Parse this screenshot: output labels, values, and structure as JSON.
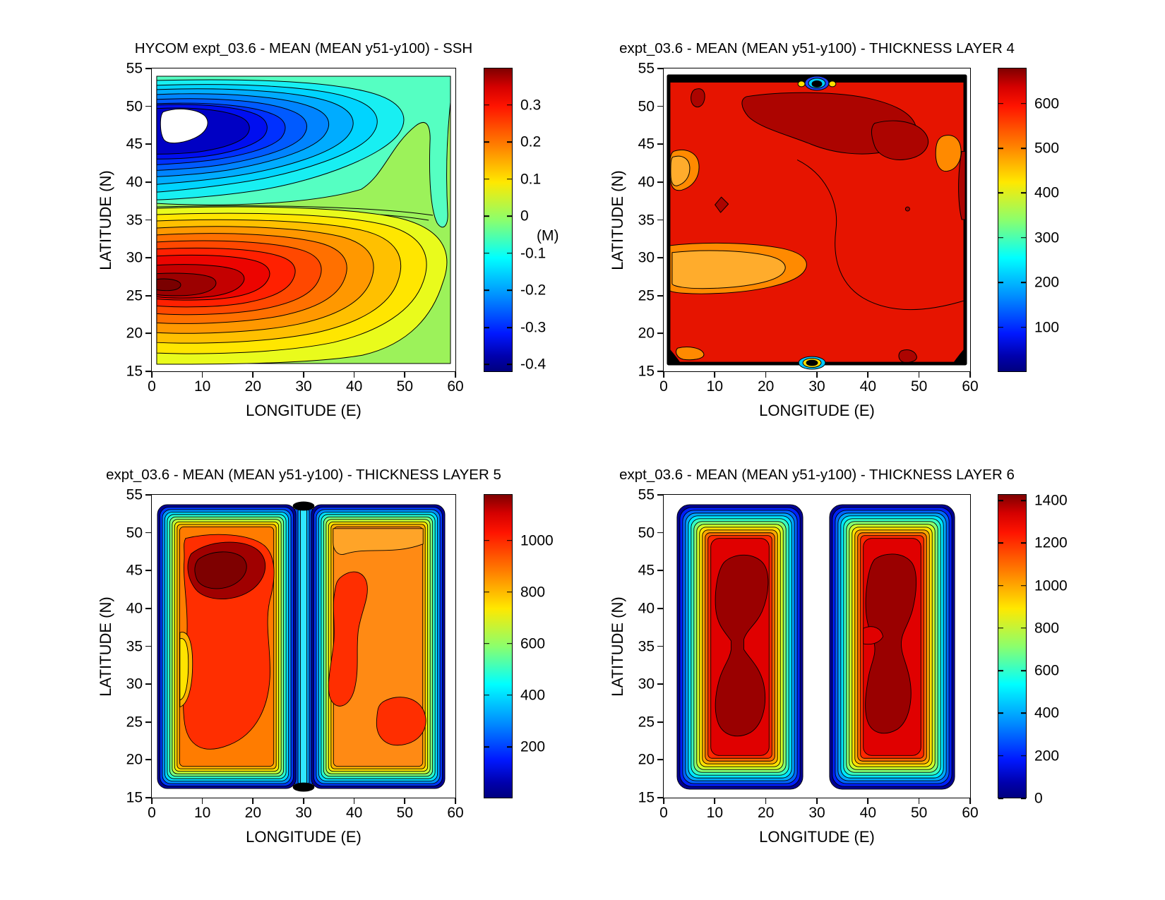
{
  "figure": {
    "background": "#ffffff",
    "colormap": "jet",
    "layout": "2x2 filled contour maps with vertical colorbars"
  },
  "chart_data": [
    {
      "type": "filled_contour",
      "title": "HYCOM expt_03.6 - MEAN (MEAN y51-y100) - SSH",
      "xlabel": "LONGITUDE (E)",
      "ylabel": "LATITUDE (N)",
      "xlim": [
        0,
        60
      ],
      "ylim": [
        15,
        55
      ],
      "xticks": [
        0,
        10,
        20,
        30,
        40,
        50,
        60
      ],
      "yticks": [
        15,
        20,
        25,
        30,
        35,
        40,
        45,
        50,
        55
      ],
      "colormap": "jet",
      "colorbar": {
        "min": -0.42,
        "max": 0.4,
        "unit": "(M)",
        "ticks": [
          0.3,
          0.2,
          0.1,
          0,
          -0.1,
          -0.2,
          -0.3,
          -0.4
        ],
        "labels": [
          "0.3",
          "0.2",
          "0.1",
          "0",
          "-0.1",
          "-0.2",
          "-0.3",
          "-0.4"
        ]
      },
      "features": [
        {
          "name": "subpolar-low",
          "value_range": [
            -0.45,
            -0.1
          ],
          "center": {
            "lon": 14,
            "lat": 46
          },
          "note": "blue depression in northern half; white saturated core (below -0.42) near lon 2-13, lat 44-50"
        },
        {
          "name": "subtropical-high",
          "value_range": [
            0.1,
            0.38
          ],
          "center": {
            "lon": 10,
            "lat": 26
          },
          "note": "red high hugging western boundary, dark-red core near lon 2-6, lat 24-28"
        },
        {
          "name": "zero-band",
          "value": 0,
          "note": "green near-zero values along eastern boundary and tight gradient band near lat 37-40"
        }
      ]
    },
    {
      "type": "filled_contour",
      "title": "expt_03.6 - MEAN (MEAN y51-y100) - THICKNESS LAYER 4",
      "xlabel": "LONGITUDE (E)",
      "ylabel": "LATITUDE (N)",
      "xlim": [
        0,
        60
      ],
      "ylim": [
        15,
        55
      ],
      "xticks": [
        0,
        10,
        20,
        30,
        40,
        50,
        60
      ],
      "yticks": [
        15,
        20,
        25,
        30,
        35,
        40,
        45,
        50,
        55
      ],
      "colormap": "jet",
      "colorbar": {
        "min": 0,
        "max": 680,
        "unit": "",
        "ticks": [
          600,
          500,
          400,
          300,
          200,
          100
        ],
        "labels": [
          "600",
          "500",
          "400",
          "300",
          "200",
          "100"
        ]
      },
      "features": [
        {
          "name": "interior",
          "value_range": [
            550,
            620
          ],
          "note": "basin interior mostly red ~600"
        },
        {
          "name": "thick-patch",
          "value_range": [
            620,
            680
          ],
          "center": {
            "lon": 30,
            "lat": 47
          },
          "note": "dark red maxima across northern interior"
        },
        {
          "name": "thin-patch",
          "value_range": [
            430,
            520
          ],
          "center": {
            "lon": 10,
            "lat": 27
          },
          "note": "orange minima near western boundary lat 23-31 and lat 36-43"
        },
        {
          "name": "boundary-collapse",
          "value_range": [
            0,
            100
          ],
          "note": "layer collapses to near zero at walls: black crowded contours along all edges, dips at lon 30 top and bottom"
        }
      ]
    },
    {
      "type": "filled_contour",
      "title": "expt_03.6 - MEAN (MEAN y51-y100) - THICKNESS LAYER 5",
      "xlabel": "LONGITUDE (E)",
      "ylabel": "LATITUDE (N)",
      "xlim": [
        0,
        60
      ],
      "ylim": [
        15,
        55
      ],
      "xticks": [
        0,
        10,
        20,
        30,
        40,
        50,
        60
      ],
      "yticks": [
        15,
        20,
        25,
        30,
        35,
        40,
        45,
        50,
        55
      ],
      "colormap": "jet",
      "colorbar": {
        "min": 0,
        "max": 1180,
        "unit": "",
        "ticks": [
          1000,
          800,
          600,
          400,
          200
        ],
        "labels": [
          "1000",
          "800",
          "600",
          "400",
          "200"
        ]
      },
      "features": [
        {
          "name": "two-basins",
          "note": "two rounded sub-basins split by a ridge channel at lon ~30 where thickness drops to ~300-400 (cyan/blue stripe)"
        },
        {
          "name": "west-basin-max",
          "value_range": [
            1050,
            1180
          ],
          "center": {
            "lon": 13,
            "lat": 46
          },
          "note": "dark red maximum in northwest of west basin"
        },
        {
          "name": "west-basin-edge-min",
          "value_range": [
            700,
            850
          ],
          "center": {
            "lon": 2,
            "lat": 34
          },
          "note": "yellow strip on west wall"
        },
        {
          "name": "east-basin",
          "value_range": [
            850,
            1050
          ],
          "note": "mostly orange with red blobs near lon 37-43 and lon 46-55, lat 20-29"
        },
        {
          "name": "rim",
          "value_range": [
            0,
            700
          ],
          "note": "tight rainbow rings collapsing to blue/black at all basin walls"
        }
      ]
    },
    {
      "type": "filled_contour",
      "title": "expt_03.6 - MEAN (MEAN y51-y100) - THICKNESS LAYER 6",
      "xlabel": "LONGITUDE (E)",
      "ylabel": "LATITUDE (N)",
      "xlim": [
        0,
        60
      ],
      "ylim": [
        15,
        55
      ],
      "xticks": [
        0,
        10,
        20,
        30,
        40,
        50,
        60
      ],
      "yticks": [
        15,
        20,
        25,
        30,
        35,
        40,
        45,
        50,
        55
      ],
      "colormap": "jet",
      "colorbar": {
        "min": 0,
        "max": 1430,
        "unit": "",
        "ticks": [
          1400,
          1200,
          1000,
          800,
          600,
          400,
          200,
          0
        ],
        "labels": [
          "1400",
          "1200",
          "1000",
          "800",
          "600",
          "400",
          "200",
          "0"
        ]
      },
      "features": [
        {
          "name": "two-isolated-pools",
          "note": "layer vanishes (white, 0) outside two rounded-rectangle pools: west pool lon ~2-27, east pool lon ~33-57, lat ~16-53"
        },
        {
          "name": "pool-cores",
          "value_range": [
            1300,
            1430
          ],
          "note": "dark red double-lobed cores (lobes near lat 40-47 and lat 23-33) inside each pool"
        },
        {
          "name": "pool-rims",
          "value_range": [
            0,
            1300
          ],
          "note": "concentric jet-colored rings from blue rim to red interior"
        }
      ]
    }
  ]
}
